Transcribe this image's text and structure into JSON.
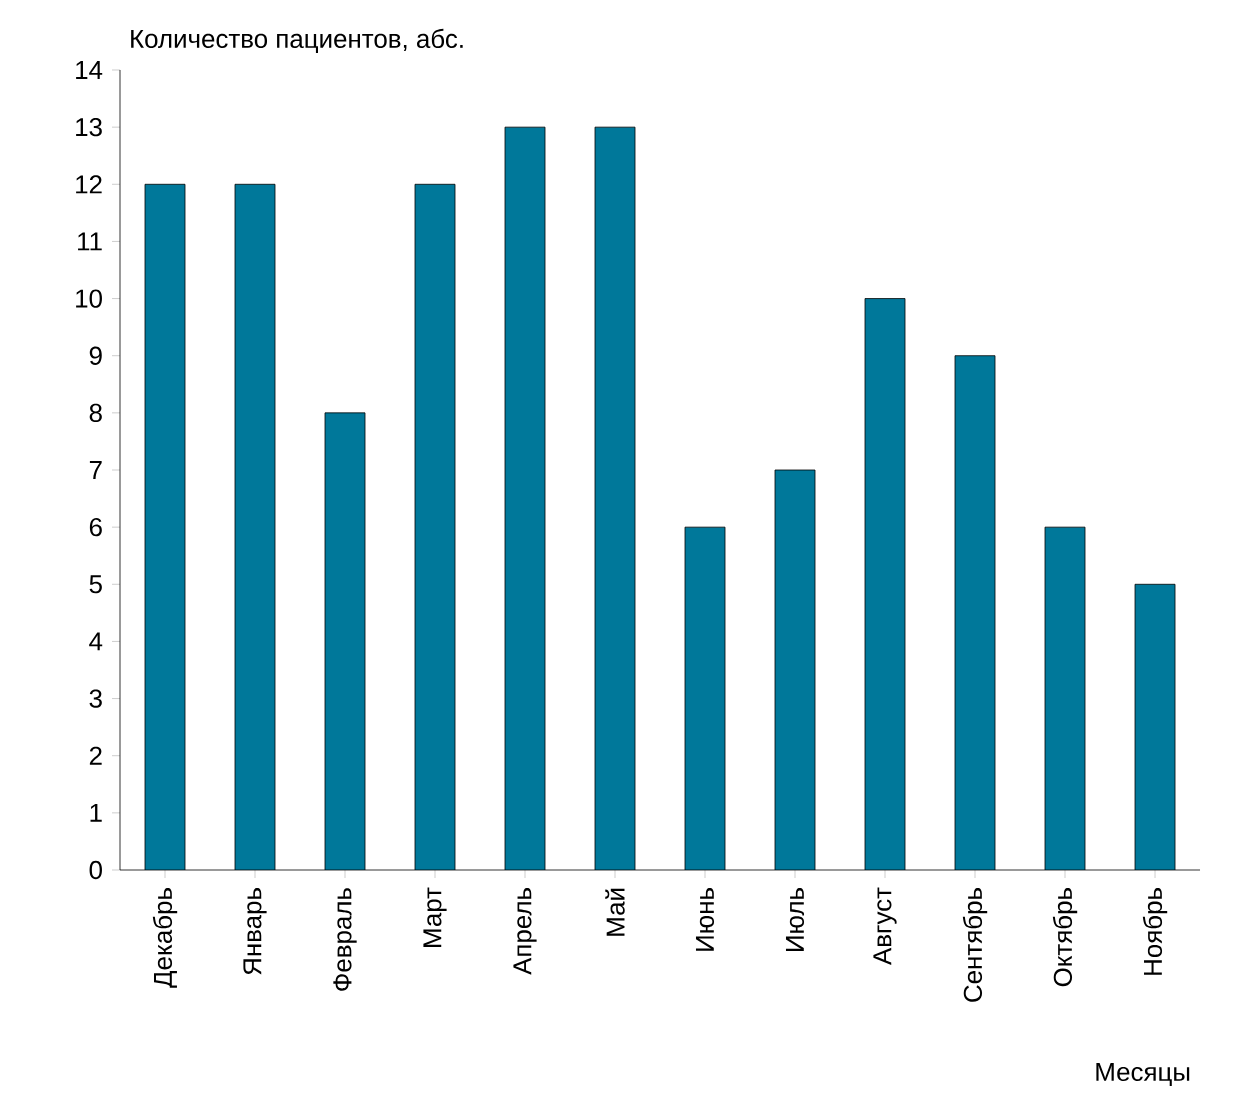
{
  "chart_data": {
    "type": "bar",
    "ylabel": "Количество пациентов, абс.",
    "xlabel": "Месяцы",
    "categories": [
      "Декабрь",
      "Январь",
      "Февраль",
      "Март",
      "Апрель",
      "Май",
      "Июнь",
      "Июль",
      "Август",
      "Сентябрь",
      "Октябрь",
      "Ноябрь"
    ],
    "values": [
      12,
      12,
      8,
      12,
      13,
      13,
      6,
      7,
      10,
      9,
      6,
      5
    ],
    "color": "#00789a",
    "ylim": [
      0,
      14
    ],
    "yticks": [
      0,
      1,
      2,
      3,
      4,
      5,
      6,
      7,
      8,
      9,
      10,
      11,
      12,
      13,
      14
    ],
    "grid": false
  }
}
